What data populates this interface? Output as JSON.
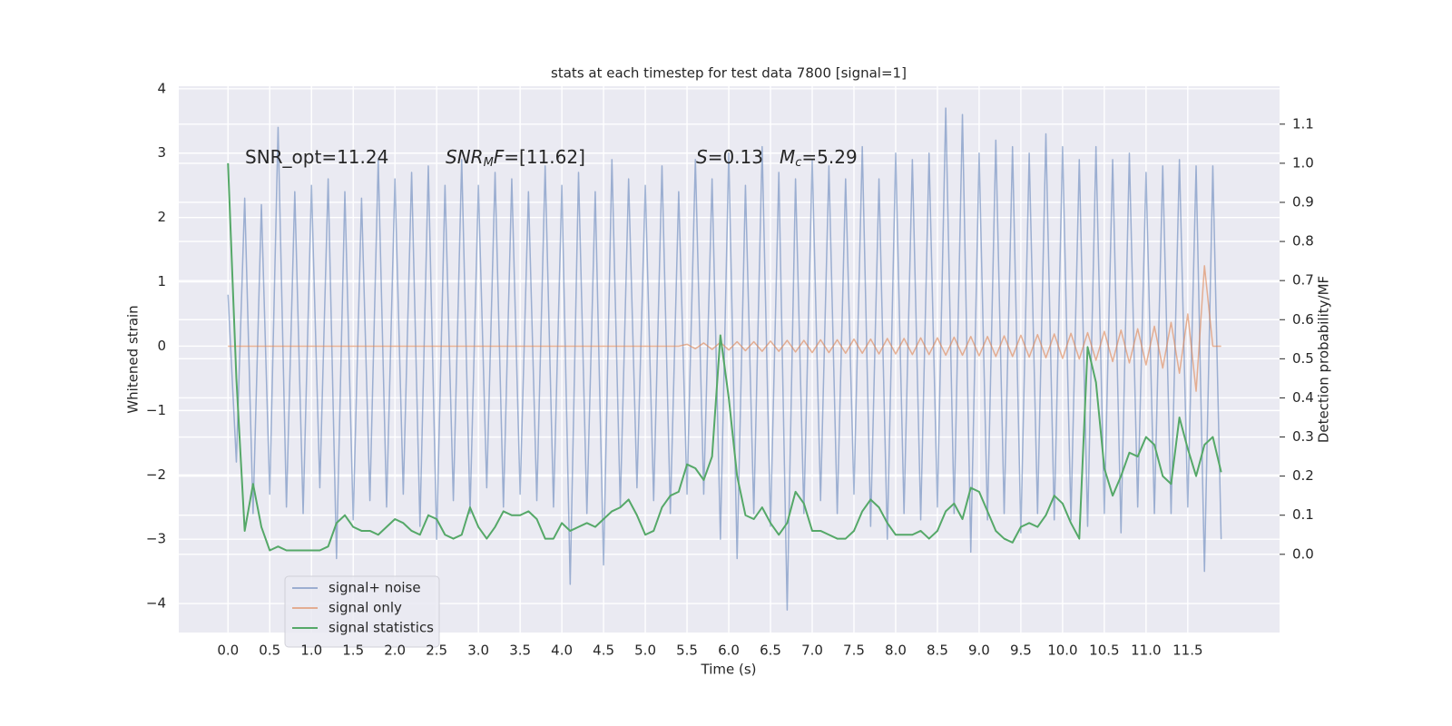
{
  "chart_data": {
    "type": "line",
    "title": "stats at each timestep for test data 7800 [signal=1]",
    "xlabel": "Time (s)",
    "ylabel": "Whitened strain",
    "y2label": "Detection probability/MF",
    "annotations": [
      [
        "SNR_opt=11.24"
      ],
      [
        "SNR",
        "M",
        "F",
        "=[11.62]"
      ],
      [
        "S",
        "=0.13"
      ],
      [
        "M",
        "c",
        "=5.29"
      ]
    ],
    "grid": true,
    "legend": "lower left",
    "xlim": [
      -0.59,
      12.6
    ],
    "ylim": [
      -4.45,
      4.04
    ],
    "y2lim": [
      -0.2,
      1.197
    ],
    "xticks": [
      {
        "value": 0,
        "label": "0.0"
      },
      0.5,
      {
        "value": 1,
        "label": "1.0"
      },
      1.5,
      {
        "value": 2,
        "label": "2.0"
      },
      2.5,
      {
        "value": 3,
        "label": "3.0"
      },
      3.5,
      {
        "value": 4,
        "label": "4.0"
      },
      4.5,
      {
        "value": 5,
        "label": "5.0"
      },
      5.5,
      {
        "value": 6,
        "label": "6.0"
      },
      6.5,
      {
        "value": 7,
        "label": "7.0"
      },
      7.5,
      {
        "value": 8,
        "label": "8.0"
      },
      8.5,
      {
        "value": 9,
        "label": "9.0"
      },
      9.5,
      {
        "value": 10,
        "label": "10.0"
      },
      10.5,
      {
        "value": 11,
        "label": "11.0"
      },
      11.5
    ],
    "yticks": [
      {
        "value": -4,
        "label": "−4"
      },
      {
        "value": -3,
        "label": "−3"
      },
      {
        "value": -2,
        "label": "−2"
      },
      {
        "value": -1,
        "label": "−1"
      },
      0,
      1,
      2,
      3,
      4
    ],
    "y2ticks": [
      {
        "value": 0,
        "label": "0.0"
      },
      0.1,
      0.2,
      0.3,
      0.4,
      0.5,
      0.6,
      0.7,
      0.8,
      0.9,
      {
        "value": 1,
        "label": "1.0"
      },
      1.1
    ],
    "x": [
      0,
      0.1,
      0.2,
      0.3,
      0.4,
      0.5,
      0.6,
      0.7,
      0.8,
      0.9,
      1,
      1.1,
      1.2,
      1.3,
      1.4,
      1.5,
      1.6,
      1.7,
      1.8,
      1.9,
      2,
      2.1,
      2.2,
      2.3,
      2.4,
      2.5,
      2.6,
      2.7,
      2.8,
      2.9,
      3,
      3.1,
      3.2,
      3.3,
      3.4,
      3.5,
      3.6,
      3.7,
      3.8,
      3.9,
      4,
      4.1,
      4.2,
      4.3,
      4.4,
      4.5,
      4.6,
      4.7,
      4.8,
      4.9,
      5,
      5.1,
      5.2,
      5.3,
      5.4,
      5.5,
      5.6,
      5.7,
      5.8,
      5.9,
      6,
      6.1,
      6.2,
      6.3,
      6.4,
      6.5,
      6.6,
      6.7,
      6.8,
      6.9,
      7,
      7.1,
      7.2,
      7.3,
      7.4,
      7.5,
      7.6,
      7.7,
      7.8,
      7.9,
      8,
      8.1,
      8.2,
      8.3,
      8.4,
      8.5,
      8.6,
      8.7,
      8.8,
      8.9,
      9,
      9.1,
      9.2,
      9.3,
      9.4,
      9.5,
      9.6,
      9.7,
      9.8,
      9.9,
      10,
      10.1,
      10.2,
      10.3,
      10.4,
      10.5,
      10.6,
      10.7,
      10.8,
      10.9,
      11,
      11.1,
      11.2,
      11.3,
      11.4,
      11.5,
      11.6,
      11.7,
      11.8,
      11.9
    ],
    "series": [
      {
        "name": "signal+ noise",
        "color": "#4c72b0",
        "values": [
          0.8,
          -1.8,
          2.3,
          -2.6,
          2.2,
          -2.3,
          3.4,
          -2.5,
          2.4,
          -2.6,
          2.5,
          -2.2,
          2.6,
          -3.3,
          2.4,
          -2.7,
          2.3,
          -2.4,
          2.9,
          -2.5,
          2.6,
          -2.3,
          2.7,
          -2.8,
          2.8,
          -3.0,
          2.5,
          -2.4,
          2.9,
          -2.6,
          2.5,
          -2.2,
          2.7,
          -2.5,
          2.6,
          -2.3,
          2.4,
          -2.4,
          2.8,
          -2.5,
          2.5,
          -3.7,
          2.7,
          -2.6,
          2.4,
          -3.4,
          2.9,
          -2.5,
          2.6,
          -2.2,
          2.5,
          -2.4,
          2.8,
          -2.6,
          2.4,
          -2.3,
          2.9,
          -2.3,
          2.6,
          -3.0,
          3.0,
          -3.3,
          2.5,
          -2.6,
          3.1,
          -2.8,
          2.7,
          -4.1,
          2.6,
          -2.6,
          2.9,
          -2.4,
          2.8,
          -2.6,
          2.6,
          -2.3,
          3.1,
          -2.8,
          2.6,
          -3.0,
          3.0,
          -2.6,
          2.9,
          -2.7,
          3.0,
          -2.5,
          3.7,
          -2.6,
          3.6,
          -3.2,
          3.0,
          -2.7,
          3.2,
          -2.6,
          3.1,
          -2.9,
          3.0,
          -2.6,
          3.3,
          -2.7,
          3.1,
          -2.7,
          2.9,
          -2.8,
          3.1,
          -2.6,
          2.9,
          -2.9,
          3.0,
          -2.5,
          2.7,
          -2.6,
          2.8,
          -2.6,
          2.9,
          -2.5,
          2.8,
          -3.5,
          2.8,
          -3.0
        ]
      },
      {
        "name": "signal only",
        "color": "#dd8452",
        "values": [
          0,
          0,
          0,
          0,
          0,
          0,
          0,
          0,
          0,
          0,
          0,
          0,
          0,
          0,
          0,
          0,
          0,
          0,
          0,
          0,
          0,
          0,
          0,
          0,
          0,
          0,
          0,
          0,
          0,
          0,
          0,
          0,
          0,
          0,
          0,
          0,
          0,
          0,
          0,
          0,
          0,
          0,
          0,
          0,
          0,
          0,
          0,
          0,
          0,
          0,
          0,
          0,
          0,
          0,
          0,
          0.03,
          -0.04,
          0.05,
          -0.05,
          0.06,
          -0.06,
          0.07,
          -0.07,
          0.07,
          -0.08,
          0.08,
          -0.08,
          0.09,
          -0.09,
          0.09,
          -0.1,
          0.1,
          -0.1,
          0.1,
          -0.11,
          0.11,
          -0.11,
          0.11,
          -0.12,
          0.12,
          -0.12,
          0.12,
          -0.13,
          0.13,
          -0.13,
          0.13,
          -0.14,
          0.14,
          -0.14,
          0.15,
          -0.15,
          0.15,
          -0.16,
          0.16,
          -0.16,
          0.17,
          -0.17,
          0.18,
          -0.18,
          0.19,
          -0.19,
          0.2,
          -0.2,
          0.21,
          -0.22,
          0.23,
          -0.24,
          0.25,
          -0.26,
          0.27,
          -0.29,
          0.31,
          -0.34,
          0.37,
          -0.42,
          0.5,
          -0.7,
          1.25,
          0,
          0
        ]
      },
      {
        "name": "signal statistics",
        "color": "#55a868",
        "axis": "y2",
        "values": [
          1.0,
          0.45,
          0.06,
          0.18,
          0.07,
          0.01,
          0.02,
          0.01,
          0.01,
          0.01,
          0.01,
          0.01,
          0.02,
          0.08,
          0.1,
          0.07,
          0.06,
          0.06,
          0.05,
          0.07,
          0.09,
          0.08,
          0.06,
          0.05,
          0.1,
          0.09,
          0.05,
          0.04,
          0.05,
          0.12,
          0.07,
          0.04,
          0.07,
          0.11,
          0.1,
          0.1,
          0.11,
          0.09,
          0.04,
          0.04,
          0.08,
          0.06,
          0.07,
          0.08,
          0.07,
          0.09,
          0.11,
          0.12,
          0.14,
          0.1,
          0.05,
          0.06,
          0.12,
          0.15,
          0.16,
          0.23,
          0.22,
          0.19,
          0.25,
          0.56,
          0.4,
          0.2,
          0.1,
          0.09,
          0.12,
          0.08,
          0.05,
          0.08,
          0.16,
          0.13,
          0.06,
          0.06,
          0.05,
          0.04,
          0.04,
          0.06,
          0.11,
          0.14,
          0.12,
          0.08,
          0.05,
          0.05,
          0.05,
          0.06,
          0.04,
          0.06,
          0.11,
          0.13,
          0.09,
          0.17,
          0.16,
          0.11,
          0.06,
          0.04,
          0.03,
          0.07,
          0.08,
          0.07,
          0.1,
          0.15,
          0.13,
          0.08,
          0.04,
          0.53,
          0.44,
          0.22,
          0.15,
          0.2,
          0.26,
          0.25,
          0.3,
          0.28,
          0.2,
          0.18,
          0.35,
          0.27,
          0.2,
          0.28,
          0.3,
          0.21
        ]
      }
    ]
  }
}
